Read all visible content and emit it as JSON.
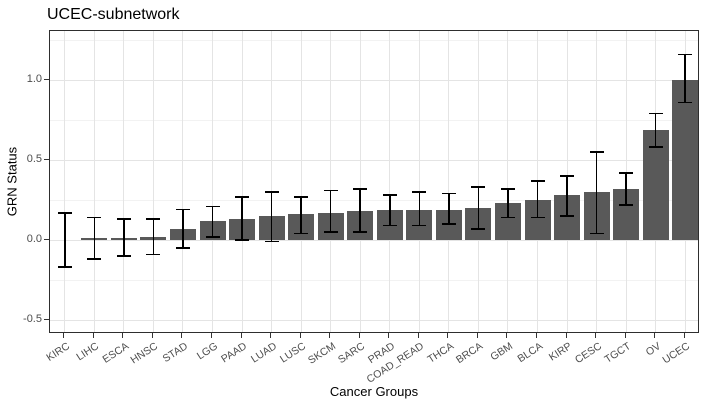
{
  "chart_data": {
    "type": "bar",
    "title": "UCEC-subnetwork",
    "xlabel": "Cancer Groups",
    "ylabel": "GRN Status",
    "categories": [
      "KIRC",
      "LIHC",
      "ESCA",
      "HNSC",
      "STAD",
      "LGG",
      "PAAD",
      "LUAD",
      "LUSC",
      "SKCM",
      "SARC",
      "PRAD",
      "COAD_READ",
      "THCA",
      "BRCA",
      "GBM",
      "BLCA",
      "KIRP",
      "CESC",
      "TGCT",
      "OV",
      "UCEC"
    ],
    "values": [
      0.0,
      0.01,
      0.01,
      0.02,
      0.07,
      0.12,
      0.13,
      0.15,
      0.16,
      0.17,
      0.18,
      0.19,
      0.19,
      0.19,
      0.2,
      0.23,
      0.25,
      0.28,
      0.3,
      0.32,
      0.69,
      1.0
    ],
    "error_low": [
      -0.17,
      -0.12,
      -0.1,
      -0.09,
      -0.05,
      0.02,
      0.0,
      -0.01,
      0.04,
      0.05,
      0.05,
      0.09,
      0.09,
      0.1,
      0.07,
      0.14,
      0.14,
      0.15,
      0.04,
      0.22,
      0.58,
      0.86
    ],
    "error_high": [
      0.17,
      0.14,
      0.13,
      0.13,
      0.19,
      0.21,
      0.27,
      0.3,
      0.27,
      0.31,
      0.32,
      0.28,
      0.3,
      0.29,
      0.33,
      0.32,
      0.37,
      0.4,
      0.55,
      0.42,
      0.79,
      1.16
    ],
    "y_tick_labels": [
      "-0.5",
      "0.0",
      "0.5",
      "1.0"
    ],
    "y_tick_values": [
      -0.5,
      0.0,
      0.5,
      1.0
    ],
    "y_minor_values": [
      -0.25,
      0.25,
      0.75,
      1.25
    ],
    "ylim": [
      -0.59,
      1.31
    ],
    "grid": true,
    "legend": false,
    "bar_color": "#595959",
    "error_bar_color": "#000000",
    "panel_border_color": "#2e2e2e",
    "grid_major_color": "#e4e4e4",
    "grid_minor_color": "#f2f2f2",
    "tick_label_color": "#4d4d4d",
    "background_color": "#ffffff"
  }
}
